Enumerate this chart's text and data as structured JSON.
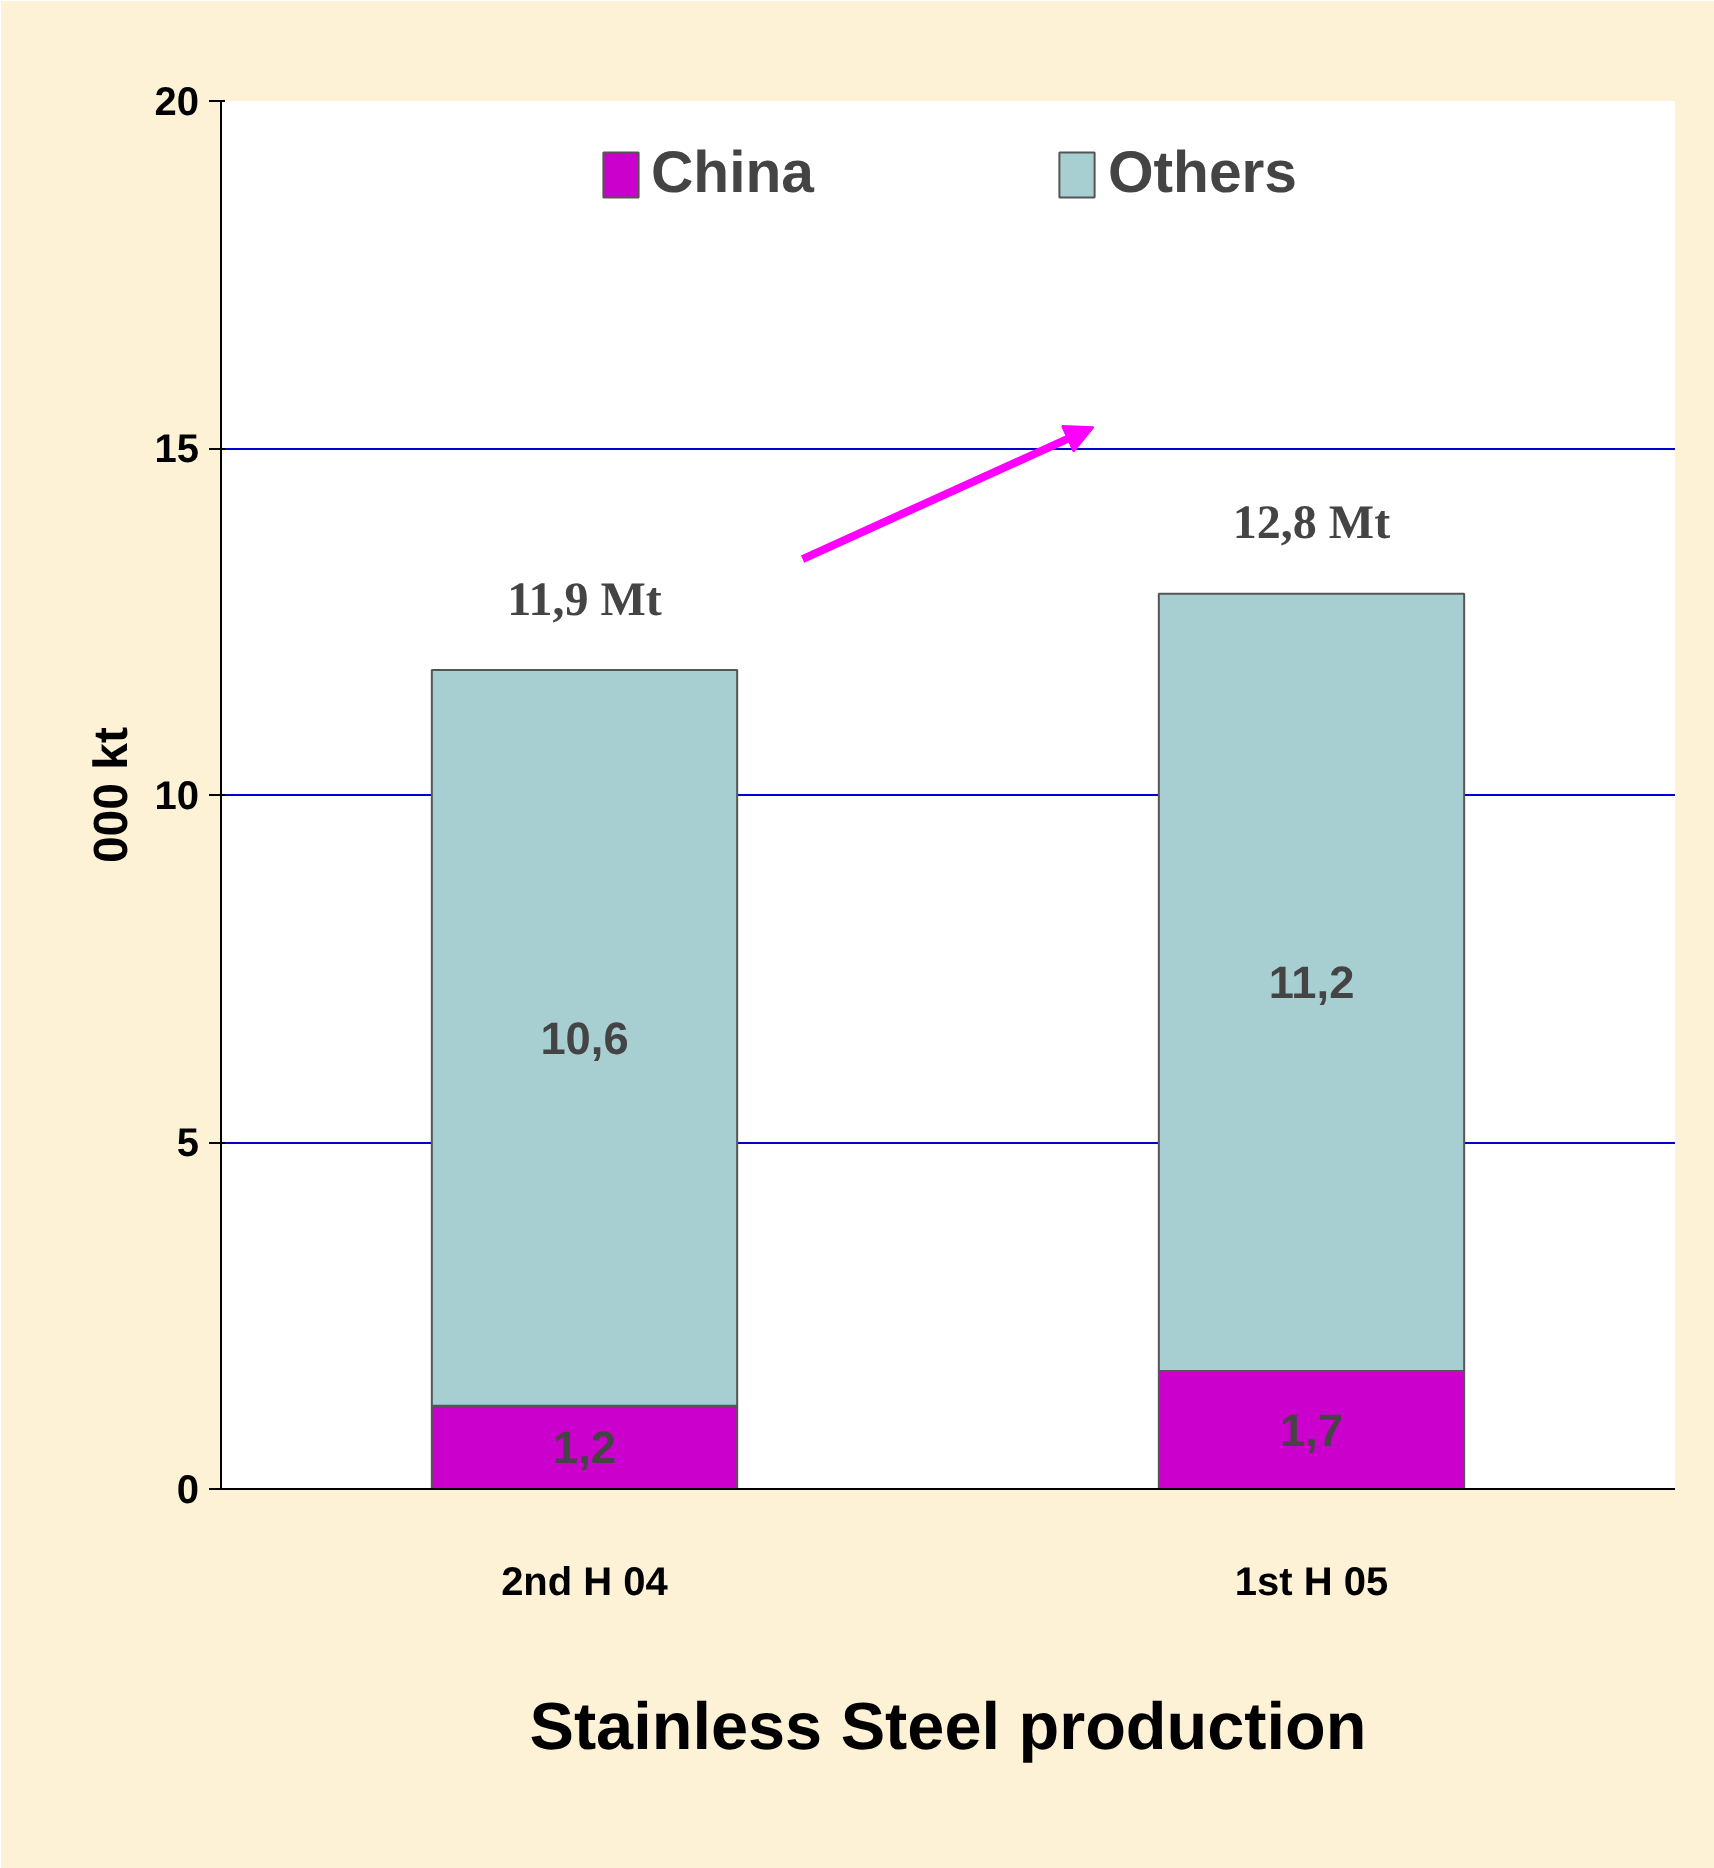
{
  "chart_data": {
    "type": "bar",
    "stacked": true,
    "xlabel": "Stainless Steel production",
    "ylabel": "000 kt",
    "categories": [
      "2nd H 04",
      "1st H 05"
    ],
    "series": [
      {
        "name": "China",
        "color": "#cc00cc",
        "values": [
          1.2,
          1.7
        ],
        "value_labels": [
          "1,2",
          "1,7"
        ]
      },
      {
        "name": "Others",
        "color": "#a7cfd2",
        "values": [
          10.6,
          11.2
        ],
        "value_labels": [
          "10,6",
          "11,2"
        ]
      }
    ],
    "totals": [
      "11,9 Mt",
      "12,8 Mt"
    ],
    "ylim": [
      0,
      20
    ],
    "yticks": [
      0,
      5,
      10,
      15,
      20
    ],
    "grid": "y",
    "legend": "top"
  }
}
